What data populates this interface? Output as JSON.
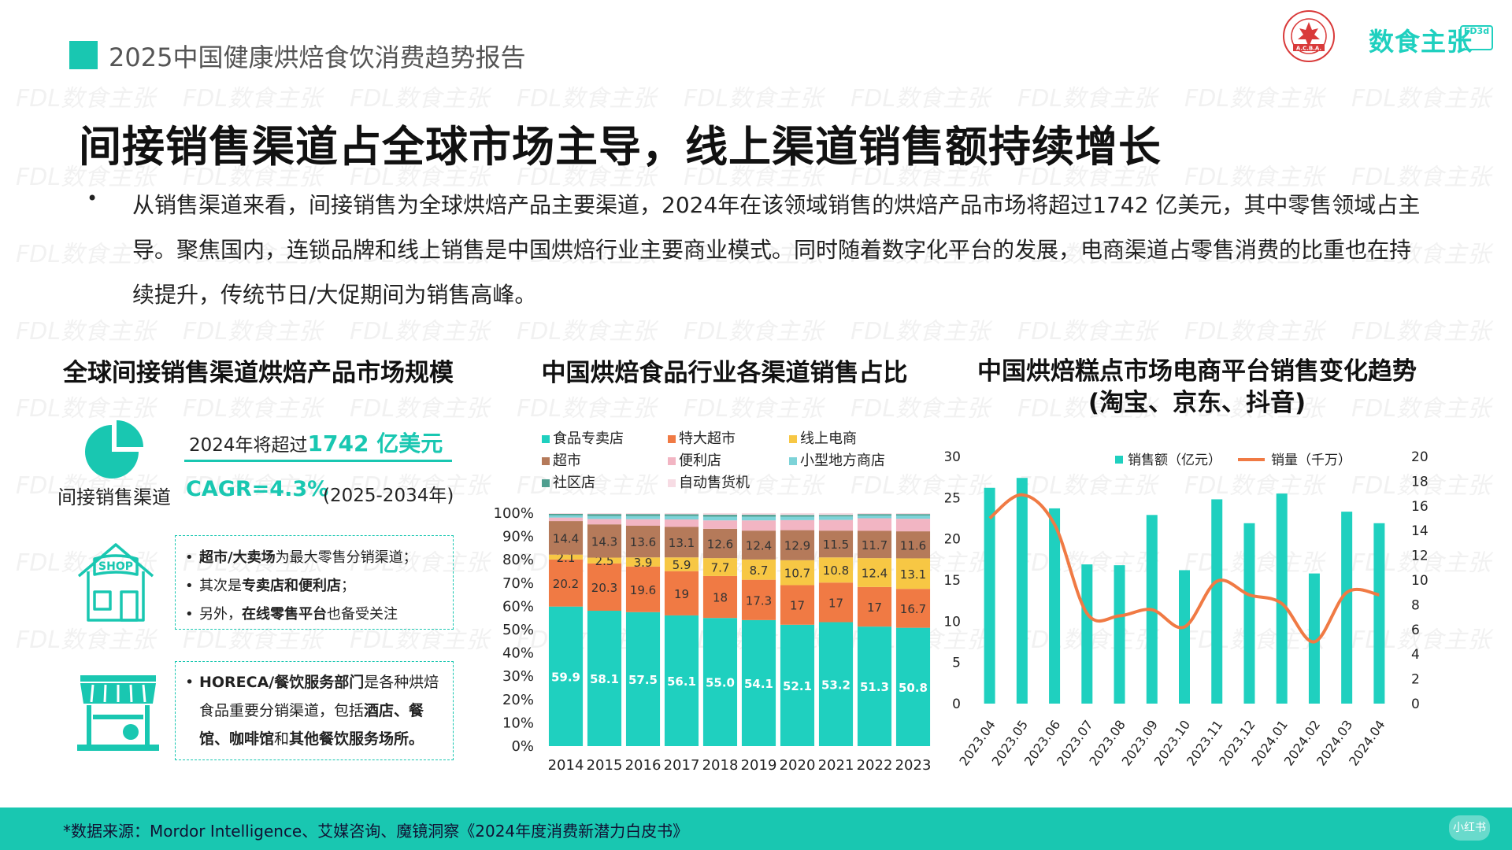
{
  "header": {
    "report_title": "2025中国健康烘焙食饮消费趋势报告",
    "brand_name": "数食主张",
    "brand_badge": "FD3d",
    "seal_text": "A.C.B.A."
  },
  "watermark_text": "FDL数食主张",
  "headline": "间接销售渠道占全球市场主导，线上渠道销售额持续增长",
  "intro": {
    "bullet": "•",
    "text": "从销售渠道来看，间接销售为全球烘焙产品主要渠道，2024年在该领域销售的烘焙产品市场将超过1742 亿美元，其中零售领域占主导。聚焦国内，连锁品牌和线上销售是中国烘焙行业主要商业模式。同时随着数字化平台的发展，电商渠道占零售消费的比重也在持续提升，传统节日/大促期间为销售高峰。"
  },
  "left_panel": {
    "title": "全球间接销售渠道烘焙产品市场规模",
    "icon_label": "间接销售渠道",
    "forecast_prefix": "2024年将超过",
    "forecast_value": "1742 亿美元",
    "cagr": "CAGR=4.3%",
    "cagr_period": "(2025-2034年)",
    "box1_items": [
      {
        "bold": "超市/大卖场",
        "rest": "为最大零售分销渠道；"
      },
      {
        "pre": "其次是",
        "bold": "专卖店和便利店",
        "rest": "；"
      },
      {
        "pre": "另外，",
        "bold": "在线零售平台",
        "rest": "也备受关注"
      }
    ],
    "box2": {
      "bold1": "HORECA/餐饮服务部门",
      "text1": "是各种烘焙食品重要分销渠道，包括",
      "bold2": "酒店、餐馆、咖啡馆",
      "text2": "和",
      "bold3": "其他餐饮服务场所。"
    },
    "shop_sign": "SHOP"
  },
  "chart_data": [
    {
      "type": "bar",
      "stacked": true,
      "title": "中国烘焙食品行业各渠道销售占比",
      "categories": [
        "2014",
        "2015",
        "2016",
        "2017",
        "2018",
        "2019",
        "2020",
        "2021",
        "2022",
        "2023"
      ],
      "y_ticks": [
        "0%",
        "10%",
        "20%",
        "30%",
        "40%",
        "50%",
        "60%",
        "70%",
        "80%",
        "90%",
        "100%"
      ],
      "ylim": [
        0,
        100
      ],
      "legend_position": "top",
      "series": [
        {
          "name": "食品专卖店",
          "color": "#1fd0bf",
          "values": [
            59.9,
            58.1,
            57.5,
            56.1,
            55.0,
            54.1,
            52.1,
            53.2,
            51.3,
            50.8
          ],
          "labels": [
            "59.9",
            "58.1",
            "57.5",
            "56.1",
            "55.0",
            "54.1",
            "52.1",
            "53.2",
            "51.3",
            "50.8"
          ]
        },
        {
          "name": "特大超市",
          "color": "#f07a44",
          "values": [
            20.2,
            20.3,
            19.6,
            19,
            18,
            17.3,
            17,
            17,
            17,
            16.7
          ],
          "labels": [
            "20.2",
            "20.3",
            "19.6",
            "19",
            "18",
            "17.3",
            "17",
            "17",
            "17",
            "16.7"
          ]
        },
        {
          "name": "线上电商",
          "color": "#f7c744",
          "values": [
            2.1,
            2.5,
            3.9,
            5.9,
            7.7,
            8.7,
            10.7,
            10.8,
            12.4,
            13.1
          ],
          "labels": [
            "2.1",
            "2.5",
            "3.9",
            "5.9",
            "7.7",
            "8.7",
            "10.7",
            "10.8",
            "12.4",
            "13.1"
          ]
        },
        {
          "name": "超市",
          "color": "#b57a5a",
          "values": [
            14.4,
            14.3,
            13.6,
            13.1,
            12.6,
            12.4,
            12.9,
            11.5,
            11.7,
            11.6
          ],
          "labels": [
            "14.4",
            "14.3",
            "13.6",
            "13.1",
            "12.6",
            "12.4",
            "12.9",
            "11.5",
            "11.7",
            "11.6"
          ]
        },
        {
          "name": "便利店",
          "color": "#f2b5c3",
          "values": [
            1.5,
            2.3,
            2.8,
            3.2,
            3.6,
            4.4,
            4.3,
            4.6,
            5.4,
            5.4
          ],
          "labels": []
        },
        {
          "name": "小型地方商店",
          "color": "#7dd3d8",
          "values": [
            1.0,
            1.3,
            1.4,
            1.5,
            1.6,
            1.6,
            1.5,
            1.5,
            1.2,
            1.4
          ],
          "labels": []
        },
        {
          "name": "社区店",
          "color": "#4f9e8f",
          "values": [
            0.6,
            0.8,
            0.8,
            0.7,
            0.8,
            0.8,
            0.7,
            0.6,
            0.6,
            0.6
          ],
          "labels": []
        },
        {
          "name": "自动售货机",
          "color": "#f7dce4",
          "values": [
            0.3,
            0.4,
            0.4,
            0.5,
            0.7,
            0.7,
            0.8,
            0.8,
            0.4,
            0.4
          ],
          "labels": []
        }
      ]
    },
    {
      "type": "bar+line",
      "title": "中国烘焙糕点市场电商平台销售变化趋势",
      "subtitle": "(淘宝、京东、抖音)",
      "categories": [
        "2023.04",
        "2023.05",
        "2023.06",
        "2023.07",
        "2023.08",
        "2023.09",
        "2023.10",
        "2023.11",
        "2023.12",
        "2024.01",
        "2024.02",
        "2024.03",
        "2024.04"
      ],
      "y_left_ticks": [
        "0",
        "5",
        "10",
        "15",
        "20",
        "25",
        "30"
      ],
      "y_right_ticks": [
        "0",
        "2",
        "4",
        "6",
        "8",
        "10",
        "12",
        "14",
        "16",
        "18",
        "20"
      ],
      "ylim_left": [
        0,
        30
      ],
      "ylim_right": [
        0,
        20
      ],
      "legend_position": "top",
      "series": [
        {
          "name": "销售额（亿元）",
          "kind": "bar",
          "axis": "left",
          "color": "#1fd0bf",
          "values": [
            26.2,
            27.4,
            23.7,
            16.9,
            16.8,
            22.9,
            16.2,
            24.8,
            21.9,
            25.5,
            15.8,
            23.3,
            21.9
          ]
        },
        {
          "name": "销量（千万）",
          "kind": "line",
          "axis": "right",
          "color": "#f07a44",
          "values": [
            15.0,
            16.9,
            14.5,
            7.3,
            7.1,
            7.6,
            6.2,
            9.9,
            8.8,
            8.1,
            5.0,
            9.0,
            8.8
          ]
        }
      ]
    }
  ],
  "footer": {
    "source": "*数据来源：Mordor Intelligence、艾媒咨询、魔镜洞察《2024年度消费新潜力白皮书》",
    "tag": "小红书"
  },
  "colors": {
    "accent": "#19c7b1",
    "orange": "#f07a44"
  }
}
